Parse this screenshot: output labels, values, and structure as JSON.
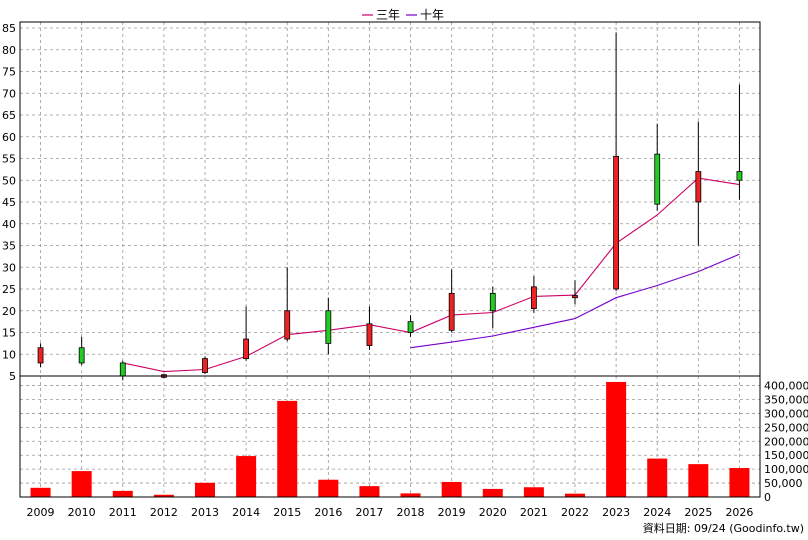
{
  "chart_data": [
    {
      "type": "candlestick",
      "legend": [
        "三年",
        "十年"
      ],
      "legend_colors": [
        "#cc0066",
        "#7700cc"
      ],
      "up_color": "#22cc22",
      "down_color": "#ee2222",
      "ylim": [
        5,
        85
      ],
      "yticks": [
        5,
        10,
        15,
        20,
        25,
        30,
        35,
        40,
        45,
        50,
        55,
        60,
        65,
        70,
        75,
        80,
        85
      ],
      "grid": true,
      "categories": [
        "2009",
        "2010",
        "2011",
        "2012",
        "2013",
        "2014",
        "2015",
        "2016",
        "2017",
        "2018",
        "2019",
        "2020",
        "2021",
        "2022",
        "2023",
        "2024",
        "2025",
        "2026"
      ],
      "candles": [
        {
          "open": 11.5,
          "close": 8.0,
          "high": 12.5,
          "low": 7.0,
          "dir": "down"
        },
        {
          "open": 8.0,
          "close": 11.5,
          "high": 14.0,
          "low": 7.5,
          "dir": "up"
        },
        {
          "open": 5.0,
          "close": 8.0,
          "high": 8.5,
          "low": 4.0,
          "dir": "up"
        },
        {
          "open": 5.3,
          "close": 4.7,
          "high": 5.5,
          "low": 4.5,
          "dir": "down"
        },
        {
          "open": 9.0,
          "close": 5.8,
          "high": 9.5,
          "low": 5.5,
          "dir": "down"
        },
        {
          "open": 13.5,
          "close": 9.0,
          "high": 21.0,
          "low": 8.5,
          "dir": "down"
        },
        {
          "open": 20.0,
          "close": 13.5,
          "high": 30.0,
          "low": 13.0,
          "dir": "down"
        },
        {
          "open": 12.5,
          "close": 20.0,
          "high": 23.0,
          "low": 10.0,
          "dir": "up"
        },
        {
          "open": 17.0,
          "close": 12.0,
          "high": 21.0,
          "low": 11.0,
          "dir": "down"
        },
        {
          "open": 15.0,
          "close": 17.5,
          "high": 19.0,
          "low": 14.0,
          "dir": "up"
        },
        {
          "open": 24.0,
          "close": 15.5,
          "high": 29.5,
          "low": 15.0,
          "dir": "down"
        },
        {
          "open": 20.0,
          "close": 24.0,
          "high": 25.5,
          "low": 16.0,
          "dir": "up"
        },
        {
          "open": 25.5,
          "close": 20.5,
          "high": 28.0,
          "low": 19.5,
          "dir": "down"
        },
        {
          "open": 23.5,
          "close": 23.0,
          "high": 27.0,
          "low": 21.5,
          "dir": "down"
        },
        {
          "open": 55.5,
          "close": 25.0,
          "high": 84.0,
          "low": 24.5,
          "dir": "down"
        },
        {
          "open": 44.5,
          "close": 56.0,
          "high": 63.0,
          "low": 43.0,
          "dir": "up"
        },
        {
          "open": 52.0,
          "close": 45.0,
          "high": 63.5,
          "low": 35.0,
          "dir": "down"
        },
        {
          "open": 50.0,
          "close": 52.0,
          "high": 72.0,
          "low": 45.5,
          "dir": "up"
        }
      ],
      "series": [
        {
          "name": "三年",
          "values": [
            null,
            null,
            8.0,
            6.0,
            6.5,
            9.5,
            14.5,
            15.5,
            16.8,
            15.0,
            19.0,
            19.6,
            23.3,
            23.6,
            35.5,
            42.0,
            50.5,
            49.0
          ]
        },
        {
          "name": "十年",
          "values": [
            null,
            null,
            null,
            null,
            null,
            null,
            null,
            null,
            null,
            11.5,
            12.8,
            14.2,
            16.2,
            18.2,
            23.0,
            25.8,
            29.0,
            33.0
          ]
        }
      ]
    },
    {
      "type": "bar",
      "categories": [
        "2009",
        "2010",
        "2011",
        "2012",
        "2013",
        "2014",
        "2015",
        "2016",
        "2017",
        "2018",
        "2019",
        "2020",
        "2021",
        "2022",
        "2023",
        "2024",
        "2025",
        "2026"
      ],
      "values": [
        33000,
        93000,
        22000,
        8000,
        51000,
        147000,
        345000,
        62000,
        39000,
        13000,
        54000,
        29000,
        35000,
        12000,
        413000,
        138000,
        118000,
        104000
      ],
      "ylim": [
        0,
        420000
      ],
      "yticks": [
        "0",
        "50,000",
        "100,000",
        "150,000",
        "200,000",
        "250,000",
        "300,000",
        "350,000",
        "400,000"
      ],
      "color": "#ff0000"
    }
  ],
  "footer": {
    "date_note": "資料日期: 09/24  (Goodinfo.tw)"
  }
}
